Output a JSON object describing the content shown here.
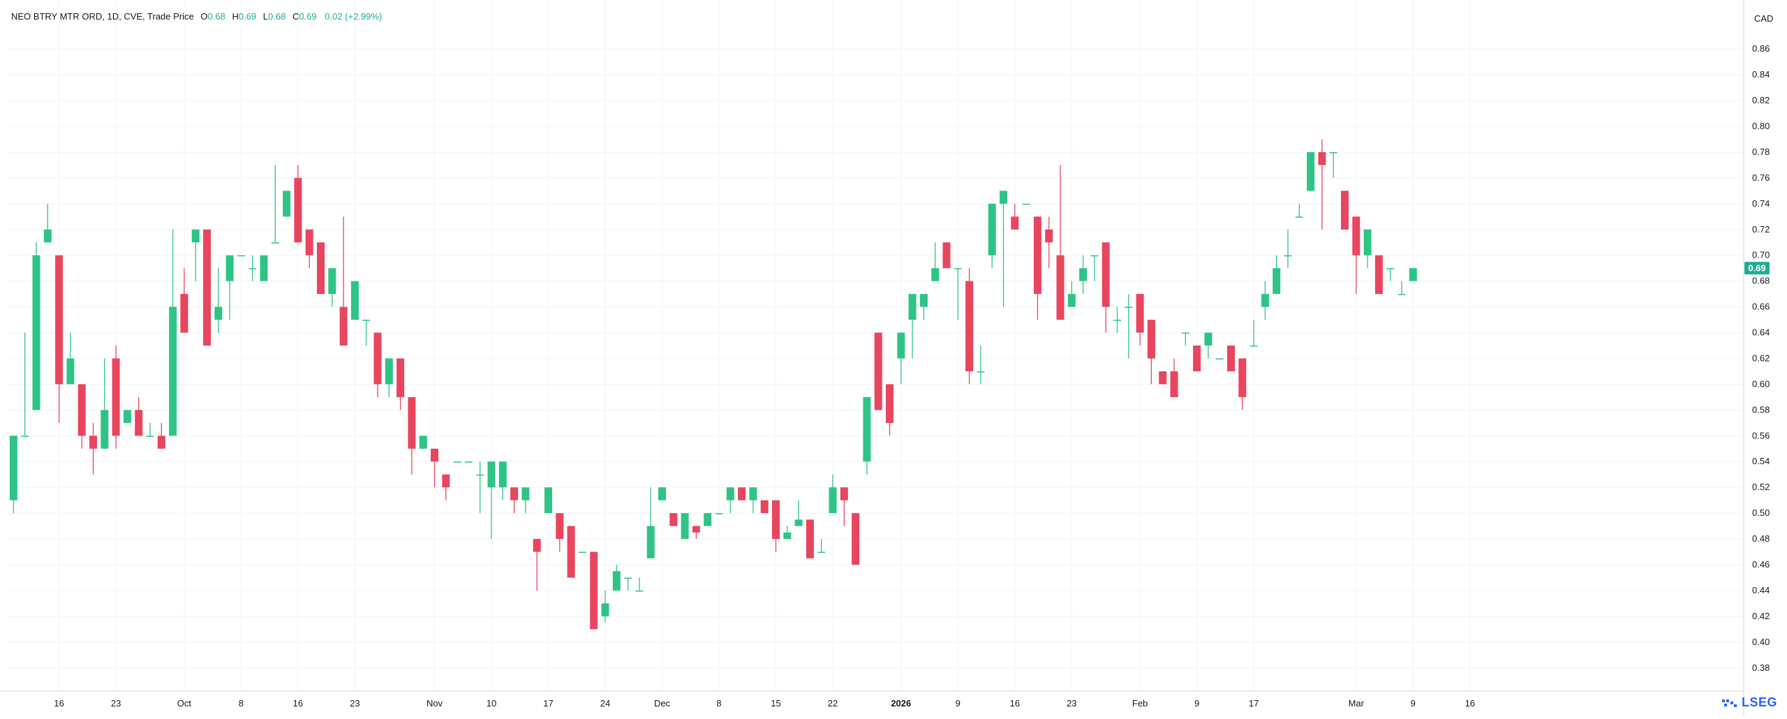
{
  "header": {
    "symbol": "NEO BTRY MTR ORD, 1D, CVE, Trade Price",
    "o_label": "O",
    "o_value": "0.68",
    "h_label": "H",
    "h_value": "0.69",
    "l_label": "L",
    "l_value": "0.68",
    "c_label": "C",
    "c_value": "0.69",
    "change": "0.02 (+2.99%)"
  },
  "currency": "CAD",
  "last_price_label": "0.69",
  "brand": "LSEG",
  "colors": {
    "up": "#2ec486",
    "down": "#e8455f",
    "grid": "#f0f3fa",
    "axis_text": "#131722",
    "price_tag": "#22ab94"
  },
  "chart_data": {
    "type": "candlestick",
    "y_ticks": [
      "0.38",
      "0.40",
      "0.42",
      "0.44",
      "0.46",
      "0.48",
      "0.50",
      "0.52",
      "0.54",
      "0.56",
      "0.58",
      "0.60",
      "0.62",
      "0.64",
      "0.66",
      "0.68",
      "0.70",
      "0.72",
      "0.74",
      "0.76",
      "0.78",
      "0.80",
      "0.82",
      "0.84",
      "0.86"
    ],
    "ylim": [
      0.362,
      0.898
    ],
    "x_ticks": [
      {
        "label": "16",
        "bar": 4
      },
      {
        "label": "23",
        "bar": 9
      },
      {
        "label": "Oct",
        "bar": 15
      },
      {
        "label": "8",
        "bar": 20
      },
      {
        "label": "16",
        "bar": 25
      },
      {
        "label": "23",
        "bar": 30
      },
      {
        "label": "Nov",
        "bar": 37
      },
      {
        "label": "10",
        "bar": 42
      },
      {
        "label": "17",
        "bar": 47
      },
      {
        "label": "24",
        "bar": 52
      },
      {
        "label": "Dec",
        "bar": 57
      },
      {
        "label": "8",
        "bar": 62
      },
      {
        "label": "15",
        "bar": 67
      },
      {
        "label": "22",
        "bar": 72
      },
      {
        "label": "2026",
        "bar": 78
      },
      {
        "label": "9",
        "bar": 83
      },
      {
        "label": "16",
        "bar": 88
      },
      {
        "label": "23",
        "bar": 93
      },
      {
        "label": "Feb",
        "bar": 99
      },
      {
        "label": "9",
        "bar": 104
      },
      {
        "label": "17",
        "bar": 109
      },
      {
        "label": "Mar",
        "bar": 118
      },
      {
        "label": "9",
        "bar": 123
      },
      {
        "label": "16",
        "bar": 128
      }
    ],
    "candles": [
      [
        0.51,
        0.56,
        0.5,
        0.56
      ],
      [
        0.56,
        0.64,
        0.56,
        0.56
      ],
      [
        0.58,
        0.71,
        0.58,
        0.7
      ],
      [
        0.71,
        0.74,
        0.71,
        0.72
      ],
      [
        0.7,
        0.7,
        0.57,
        0.6
      ],
      [
        0.6,
        0.64,
        0.6,
        0.62
      ],
      [
        0.6,
        0.6,
        0.55,
        0.56
      ],
      [
        0.56,
        0.57,
        0.53,
        0.55
      ],
      [
        0.55,
        0.62,
        0.55,
        0.58
      ],
      [
        0.62,
        0.63,
        0.55,
        0.56
      ],
      [
        0.57,
        0.58,
        0.57,
        0.58
      ],
      [
        0.58,
        0.59,
        0.56,
        0.56
      ],
      [
        0.56,
        0.57,
        0.56,
        0.56
      ],
      [
        0.56,
        0.57,
        0.55,
        0.55
      ],
      [
        0.56,
        0.72,
        0.56,
        0.66
      ],
      [
        0.67,
        0.69,
        0.64,
        0.64
      ],
      [
        0.71,
        0.72,
        0.68,
        0.72
      ],
      [
        0.72,
        0.72,
        0.63,
        0.63
      ],
      [
        0.65,
        0.69,
        0.64,
        0.66
      ],
      [
        0.68,
        0.7,
        0.65,
        0.7
      ],
      [
        0.7,
        0.7,
        0.7,
        0.7
      ],
      [
        0.69,
        0.7,
        0.68,
        0.69
      ],
      [
        0.68,
        0.7,
        0.68,
        0.7
      ],
      [
        0.71,
        0.77,
        0.71,
        0.71
      ],
      [
        0.73,
        0.75,
        0.73,
        0.75
      ],
      [
        0.76,
        0.77,
        0.71,
        0.71
      ],
      [
        0.72,
        0.72,
        0.69,
        0.7
      ],
      [
        0.71,
        0.71,
        0.67,
        0.67
      ],
      [
        0.67,
        0.69,
        0.66,
        0.69
      ],
      [
        0.66,
        0.73,
        0.63,
        0.63
      ],
      [
        0.65,
        0.68,
        0.65,
        0.68
      ],
      [
        0.65,
        0.65,
        0.63,
        0.65
      ],
      [
        0.64,
        0.64,
        0.59,
        0.6
      ],
      [
        0.6,
        0.62,
        0.59,
        0.62
      ],
      [
        0.62,
        0.62,
        0.58,
        0.59
      ],
      [
        0.59,
        0.59,
        0.53,
        0.55
      ],
      [
        0.55,
        0.56,
        0.55,
        0.56
      ],
      [
        0.55,
        0.55,
        0.52,
        0.54
      ],
      [
        0.53,
        0.53,
        0.51,
        0.52
      ],
      [
        0.54,
        0.54,
        0.54,
        0.54
      ],
      [
        0.54,
        0.54,
        0.54,
        0.54
      ],
      [
        0.53,
        0.54,
        0.5,
        0.53
      ],
      [
        0.52,
        0.54,
        0.48,
        0.54
      ],
      [
        0.52,
        0.54,
        0.51,
        0.54
      ],
      [
        0.52,
        0.52,
        0.5,
        0.51
      ],
      [
        0.51,
        0.52,
        0.5,
        0.52
      ],
      [
        0.48,
        0.48,
        0.44,
        0.47
      ],
      [
        0.5,
        0.52,
        0.5,
        0.52
      ],
      [
        0.5,
        0.5,
        0.47,
        0.48
      ],
      [
        0.49,
        0.49,
        0.45,
        0.45
      ],
      [
        0.47,
        0.47,
        0.47,
        0.47
      ],
      [
        0.47,
        0.47,
        0.41,
        0.41
      ],
      [
        0.42,
        0.44,
        0.415,
        0.43
      ],
      [
        0.44,
        0.46,
        0.44,
        0.455
      ],
      [
        0.45,
        0.45,
        0.44,
        0.45
      ],
      [
        0.44,
        0.45,
        0.44,
        0.44
      ],
      [
        0.465,
        0.52,
        0.465,
        0.49
      ],
      [
        0.51,
        0.52,
        0.51,
        0.52
      ],
      [
        0.5,
        0.5,
        0.49,
        0.49
      ],
      [
        0.48,
        0.5,
        0.48,
        0.5
      ],
      [
        0.49,
        0.49,
        0.48,
        0.485
      ],
      [
        0.49,
        0.5,
        0.49,
        0.5
      ],
      [
        0.5,
        0.5,
        0.5,
        0.5
      ],
      [
        0.51,
        0.52,
        0.5,
        0.52
      ],
      [
        0.52,
        0.52,
        0.51,
        0.51
      ],
      [
        0.51,
        0.52,
        0.5,
        0.52
      ],
      [
        0.51,
        0.51,
        0.5,
        0.5
      ],
      [
        0.51,
        0.51,
        0.47,
        0.48
      ],
      [
        0.48,
        0.49,
        0.48,
        0.485
      ],
      [
        0.49,
        0.51,
        0.49,
        0.495
      ],
      [
        0.495,
        0.495,
        0.465,
        0.465
      ],
      [
        0.47,
        0.48,
        0.47,
        0.47
      ],
      [
        0.5,
        0.53,
        0.5,
        0.52
      ],
      [
        0.52,
        0.52,
        0.49,
        0.51
      ],
      [
        0.5,
        0.5,
        0.46,
        0.46
      ],
      [
        0.54,
        0.59,
        0.53,
        0.59
      ],
      [
        0.64,
        0.64,
        0.58,
        0.58
      ],
      [
        0.6,
        0.6,
        0.56,
        0.57
      ],
      [
        0.62,
        0.64,
        0.6,
        0.64
      ],
      [
        0.65,
        0.67,
        0.62,
        0.67
      ],
      [
        0.66,
        0.67,
        0.65,
        0.67
      ],
      [
        0.68,
        0.71,
        0.68,
        0.69
      ],
      [
        0.71,
        0.71,
        0.69,
        0.69
      ],
      [
        0.69,
        0.69,
        0.65,
        0.69
      ],
      [
        0.68,
        0.69,
        0.6,
        0.61
      ],
      [
        0.61,
        0.63,
        0.6,
        0.61
      ],
      [
        0.7,
        0.74,
        0.69,
        0.74
      ],
      [
        0.74,
        0.75,
        0.66,
        0.75
      ],
      [
        0.73,
        0.74,
        0.72,
        0.72
      ],
      [
        0.74,
        0.74,
        0.74,
        0.74
      ],
      [
        0.73,
        0.73,
        0.65,
        0.67
      ],
      [
        0.72,
        0.73,
        0.69,
        0.71
      ],
      [
        0.7,
        0.77,
        0.65,
        0.65
      ],
      [
        0.66,
        0.68,
        0.66,
        0.67
      ],
      [
        0.68,
        0.7,
        0.67,
        0.69
      ],
      [
        0.7,
        0.7,
        0.68,
        0.7
      ],
      [
        0.71,
        0.71,
        0.64,
        0.66
      ],
      [
        0.65,
        0.66,
        0.64,
        0.65
      ],
      [
        0.66,
        0.67,
        0.62,
        0.66
      ],
      [
        0.67,
        0.67,
        0.63,
        0.64
      ],
      [
        0.65,
        0.65,
        0.6,
        0.62
      ],
      [
        0.61,
        0.61,
        0.6,
        0.6
      ],
      [
        0.61,
        0.62,
        0.59,
        0.59
      ],
      [
        0.64,
        0.64,
        0.63,
        0.64
      ],
      [
        0.63,
        0.63,
        0.61,
        0.61
      ],
      [
        0.63,
        0.64,
        0.62,
        0.64
      ],
      [
        0.62,
        0.62,
        0.62,
        0.62
      ],
      [
        0.63,
        0.63,
        0.61,
        0.61
      ],
      [
        0.62,
        0.62,
        0.58,
        0.59
      ],
      [
        0.63,
        0.65,
        0.63,
        0.63
      ],
      [
        0.66,
        0.68,
        0.65,
        0.67
      ],
      [
        0.67,
        0.7,
        0.67,
        0.69
      ],
      [
        0.7,
        0.72,
        0.69,
        0.7
      ],
      [
        0.73,
        0.74,
        0.73,
        0.73
      ],
      [
        0.75,
        0.78,
        0.75,
        0.78
      ],
      [
        0.78,
        0.79,
        0.72,
        0.77
      ],
      [
        0.78,
        0.78,
        0.76,
        0.78
      ],
      [
        0.75,
        0.75,
        0.72,
        0.72
      ],
      [
        0.73,
        0.73,
        0.67,
        0.7
      ],
      [
        0.7,
        0.72,
        0.69,
        0.72
      ],
      [
        0.7,
        0.7,
        0.67,
        0.67
      ],
      [
        0.69,
        0.69,
        0.68,
        0.69
      ],
      [
        0.67,
        0.68,
        0.67,
        0.67
      ],
      [
        0.68,
        0.69,
        0.68,
        0.69
      ]
    ]
  }
}
